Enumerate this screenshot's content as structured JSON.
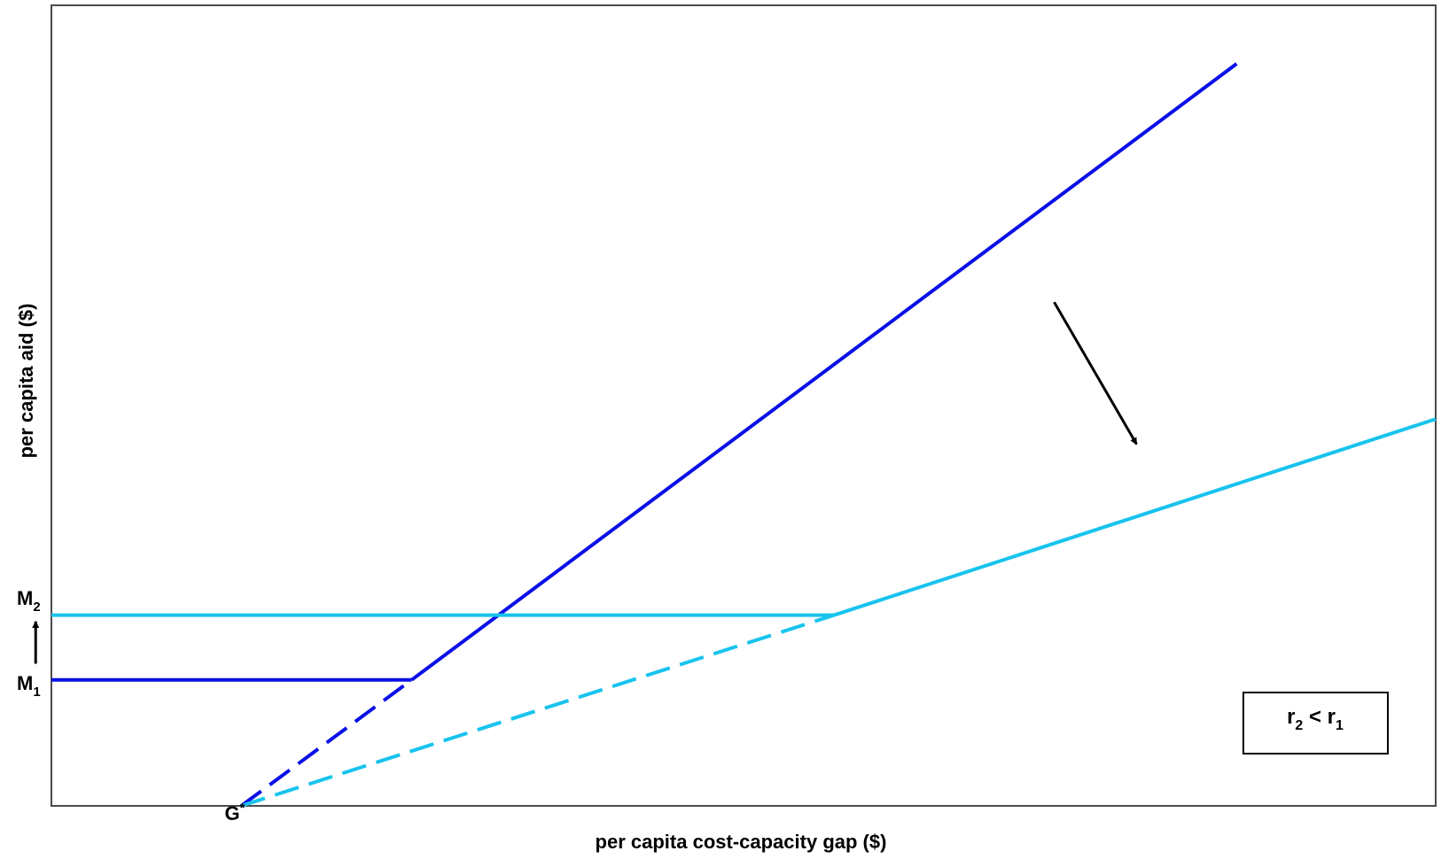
{
  "chart_data": {
    "type": "line",
    "xlabel": "per capita cost-capacity gap ($)",
    "ylabel": "per capita aid ($)",
    "x_tick_labels": [
      {
        "base": "G",
        "sup": "*",
        "x": 0
      }
    ],
    "y_tick_labels": [
      {
        "base": "M",
        "sub": "1",
        "y": 140
      },
      {
        "base": "M",
        "sub": "2",
        "y": 212
      }
    ],
    "xlim": [
      -205,
      1290
    ],
    "ylim": [
      0,
      890
    ],
    "series": [
      {
        "name": "",
        "color": "#0a10e6",
        "segments": [
          {
            "style": "solid",
            "points": [
              [
                -205,
                140
              ],
              [
                184,
                140
              ]
            ]
          },
          {
            "style": "dashed",
            "points": [
              [
                0,
                0
              ],
              [
                184,
                140
              ]
            ]
          },
          {
            "style": "solid",
            "points": [
              [
                184,
                140
              ],
              [
                1075,
                825
              ]
            ]
          }
        ]
      },
      {
        "name": "",
        "color": "#17c3ee",
        "segments": [
          {
            "style": "solid",
            "points": [
              [
                -205,
                212
              ],
              [
                640,
                212
              ]
            ]
          },
          {
            "style": "dashed",
            "points": [
              [
                0,
                0
              ],
              [
                640,
                212
              ]
            ]
          },
          {
            "style": "solid",
            "points": [
              [
                640,
                212
              ],
              [
                1290,
                430
              ]
            ]
          }
        ]
      }
    ],
    "annotations": [
      {
        "type": "arrow",
        "from": [
          878,
          560
        ],
        "to": [
          967,
          402
        ],
        "color": "#000000"
      },
      {
        "type": "arrow",
        "from": [
          -222,
          158
        ],
        "to": [
          -222,
          205
        ],
        "color": "#000000"
      },
      {
        "type": "box",
        "parts": [
          {
            "base": "r",
            "sub": "2"
          },
          {
            "text": " < "
          },
          {
            "base": "r",
            "sub": "1"
          }
        ]
      }
    ],
    "grid": false,
    "legend": "none"
  }
}
